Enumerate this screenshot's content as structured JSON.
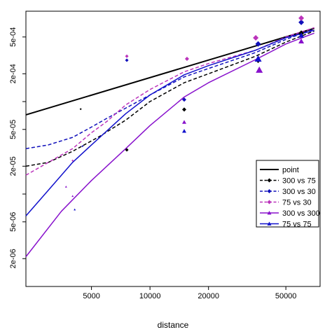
{
  "chart_data": {
    "type": "line",
    "title": "",
    "xlabel": "distance",
    "ylabel": "",
    "x_scale": "log",
    "y_scale": "log",
    "xlim": [
      2300,
      75000
    ],
    "ylim": [
      1e-06,
      0.00095
    ],
    "x_ticks": [
      {
        "value": 5000,
        "label": "5000"
      },
      {
        "value": 10000,
        "label": "10000"
      },
      {
        "value": 20000,
        "label": "20000"
      },
      {
        "value": 50000,
        "label": "50000"
      }
    ],
    "y_ticks": [
      {
        "value": 2e-06,
        "label": "2e-06"
      },
      {
        "value": 5e-06,
        "label": "5e-06"
      },
      {
        "value": 2e-05,
        "label": "2e-05"
      },
      {
        "value": 5e-05,
        "label": "5e-05"
      },
      {
        "value": 0.0002,
        "label": "2e-04"
      },
      {
        "value": 0.0005,
        "label": "5e-04"
      }
    ],
    "y_minor_ticks": [
      2e-06,
      5e-06,
      1e-05,
      2e-05,
      5e-05,
      0.0001,
      0.0002,
      0.0005
    ],
    "legend_position": "right",
    "series": [
      {
        "name": "point",
        "color": "#000000",
        "dash": "solid",
        "width": 2,
        "marker": "none",
        "x": [
          2300,
          70000
        ],
        "y": [
          7.2e-05,
          0.00062
        ]
      },
      {
        "name": "300 vs 75",
        "color": "#000000",
        "dash": "dashed",
        "width": 1.5,
        "marker": "diamond",
        "x": [
          2300,
          3000,
          4000,
          5500,
          7500,
          10000,
          15000,
          20000,
          35000,
          50000,
          70000
        ],
        "y": [
          2e-05,
          2.2e-05,
          2.9e-05,
          4.2e-05,
          6.3e-05,
          0.0001,
          0.00016,
          0.0002,
          0.00031,
          0.00044,
          0.00058
        ]
      },
      {
        "name": "300 vs 30",
        "color": "#1010bb",
        "dash": "dashed",
        "width": 1.5,
        "marker": "diamond",
        "x": [
          2300,
          3000,
          4000,
          5000,
          6000,
          7500,
          10000,
          15000,
          20000,
          35000,
          50000,
          70000
        ],
        "y": [
          3.1e-05,
          3.4e-05,
          4.1e-05,
          5.3e-05,
          6.6e-05,
          8.5e-05,
          0.000118,
          0.000185,
          0.000228,
          0.00034,
          0.00047,
          0.00061
        ]
      },
      {
        "name": "75 vs 30",
        "color": "#bb33bb",
        "dash": "dashed",
        "width": 1.5,
        "marker": "diamond",
        "x": [
          2300,
          3000,
          4000,
          5000,
          6000,
          7500,
          10000,
          15000,
          20000,
          35000,
          50000,
          70000
        ],
        "y": [
          1.6e-05,
          2.2e-05,
          3.1e-05,
          4.6e-05,
          6.1e-05,
          9.2e-05,
          0.000135,
          0.00021,
          0.000258,
          0.00036,
          0.0005,
          0.00063
        ]
      },
      {
        "name": "300 vs 300",
        "color": "#8811cc",
        "dash": "solid",
        "width": 1.5,
        "marker": "triangle",
        "x": [
          2300,
          3500,
          5000,
          7500,
          10000,
          15000,
          20000,
          35000,
          50000,
          70000
        ],
        "y": [
          2.1e-06,
          6.5e-06,
          1.4e-05,
          3.1e-05,
          5.5e-05,
          0.000112,
          0.00016,
          0.000285,
          0.00042,
          0.00055
        ]
      },
      {
        "name": "75 vs 75",
        "color": "#1111cc",
        "dash": "solid",
        "width": 1.5,
        "marker": "triangle",
        "x": [
          2300,
          3000,
          4000,
          5000,
          7500,
          10000,
          15000,
          20000,
          35000,
          50000,
          70000
        ],
        "y": [
          5.8e-06,
          1.1e-05,
          2.2e-05,
          3.4e-05,
          7.4e-05,
          0.000118,
          0.000195,
          0.000245,
          0.00036,
          0.00049,
          0.00059
        ]
      }
    ],
    "points": [
      {
        "series": "300 vs 75",
        "x": 4400,
        "y": 8.3e-05,
        "size": 1.5
      },
      {
        "series": "300 vs 75",
        "x": 7600,
        "y": 3e-05,
        "size": 2.5
      },
      {
        "series": "300 vs 75",
        "x": 15000,
        "y": 8.2e-05,
        "size": 3
      },
      {
        "series": "300 vs 75",
        "x": 36000,
        "y": 0.00028,
        "size": 4
      },
      {
        "series": "300 vs 75",
        "x": 60000,
        "y": 0.00055,
        "size": 4
      },
      {
        "series": "300 vs 30",
        "x": 4500,
        "y": 3.3e-05,
        "size": 1.5
      },
      {
        "series": "300 vs 30",
        "x": 7600,
        "y": 0.00028,
        "size": 2.5
      },
      {
        "series": "300 vs 30",
        "x": 15000,
        "y": 0.000105,
        "size": 3
      },
      {
        "series": "300 vs 30",
        "x": 36000,
        "y": 0.00042,
        "size": 4
      },
      {
        "series": "300 vs 30",
        "x": 60000,
        "y": 0.00072,
        "size": 4
      },
      {
        "series": "75 vs 30",
        "x": 4000,
        "y": 2.3e-05,
        "size": 1.5
      },
      {
        "series": "75 vs 30",
        "x": 7600,
        "y": 0.00031,
        "size": 2.5
      },
      {
        "series": "75 vs 30",
        "x": 15500,
        "y": 0.00029,
        "size": 3
      },
      {
        "series": "75 vs 30",
        "x": 35000,
        "y": 0.00049,
        "size": 4
      },
      {
        "series": "75 vs 30",
        "x": 60000,
        "y": 0.0008,
        "size": 4
      },
      {
        "series": "300 vs 300",
        "x": 3700,
        "y": 1.2e-05,
        "size": 1.5
      },
      {
        "series": "300 vs 300",
        "x": 4000,
        "y": 9.5e-06,
        "size": 1.5
      },
      {
        "series": "300 vs 300",
        "x": 15000,
        "y": 6e-05,
        "size": 3
      },
      {
        "series": "300 vs 300",
        "x": 36500,
        "y": 0.00022,
        "size": 5
      },
      {
        "series": "300 vs 300",
        "x": 60000,
        "y": 0.00045,
        "size": 4
      },
      {
        "series": "75 vs 75",
        "x": 4100,
        "y": 6.8e-06,
        "size": 1.5
      },
      {
        "series": "75 vs 75",
        "x": 15000,
        "y": 4.8e-05,
        "size": 3
      },
      {
        "series": "75 vs 75",
        "x": 36000,
        "y": 0.00029,
        "size": 5
      },
      {
        "series": "75 vs 75",
        "x": 60000,
        "y": 0.00052,
        "size": 4
      }
    ]
  }
}
